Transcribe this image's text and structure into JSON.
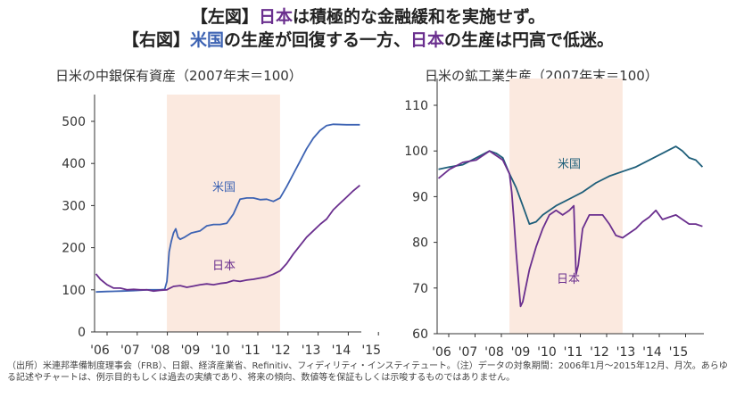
{
  "headline": {
    "l1_a": "【左図】",
    "l1_b": "日本",
    "l1_c": "は積極的な金融緩和を実施せず。",
    "l2_a": "【右図】",
    "l2_b": "米国",
    "l2_c": "の生産が回復する一方、",
    "l2_d": "日本",
    "l2_e": "の生産は円高で低迷。"
  },
  "footnote": "（出所）米連邦準備制度理事会（FRB）、日銀、経済産業省、Refinitiv、フィディリティ・インスティテュート。（注）データの対象期間：2006年1月～2015年12月、月次。あらゆる記述やチャートは、例示目的もしくは過去の実績であり、将来の傾向、数値等を保証もしくは示唆するものではありません。",
  "colors": {
    "us": "#3d63b3",
    "jp": "#6a2f8e",
    "us_right": "#1f5f7a",
    "shade": "#fbe9df"
  },
  "chart_data": [
    {
      "type": "line",
      "title": "日米の中銀保有資産（2007年末＝100）",
      "xlabel": "",
      "ylabel": "",
      "x_ticks": [
        "'06",
        "'07",
        "'08",
        "'09",
        "'10",
        "'11",
        "'12",
        "'13",
        "'14",
        "'15"
      ],
      "ylim": [
        0,
        500
      ],
      "y_ticks": [
        "0",
        "100",
        "200",
        "300",
        "400",
        "500"
      ],
      "shade": [
        "2008-09",
        "2012-12"
      ],
      "series": [
        {
          "name": "米国",
          "points": [
            [
              "2006-01",
              95
            ],
            [
              "2006-06",
              96
            ],
            [
              "2007-01",
              97
            ],
            [
              "2007-06",
              98
            ],
            [
              "2007-12",
              100
            ],
            [
              "2008-06",
              100
            ],
            [
              "2008-08",
              101
            ],
            [
              "2008-09",
              120
            ],
            [
              "2008-10",
              190
            ],
            [
              "2008-11",
              215
            ],
            [
              "2008-12",
              235
            ],
            [
              "2009-01",
              245
            ],
            [
              "2009-02",
              225
            ],
            [
              "2009-03",
              220
            ],
            [
              "2009-05",
              225
            ],
            [
              "2009-08",
              235
            ],
            [
              "2009-12",
              240
            ],
            [
              "2010-03",
              252
            ],
            [
              "2010-06",
              255
            ],
            [
              "2010-09",
              255
            ],
            [
              "2010-12",
              258
            ],
            [
              "2011-03",
              280
            ],
            [
              "2011-06",
              315
            ],
            [
              "2011-09",
              318
            ],
            [
              "2011-12",
              318
            ],
            [
              "2012-03",
              314
            ],
            [
              "2012-06",
              315
            ],
            [
              "2012-09",
              310
            ],
            [
              "2012-12",
              318
            ],
            [
              "2013-03",
              345
            ],
            [
              "2013-06",
              375
            ],
            [
              "2013-09",
              405
            ],
            [
              "2013-12",
              435
            ],
            [
              "2014-03",
              460
            ],
            [
              "2014-06",
              478
            ],
            [
              "2014-09",
              490
            ],
            [
              "2014-12",
              493
            ],
            [
              "2015-06",
              492
            ],
            [
              "2015-12",
              492
            ]
          ]
        },
        {
          "name": "日本",
          "points": [
            [
              "2006-01",
              138
            ],
            [
              "2006-03",
              125
            ],
            [
              "2006-06",
              112
            ],
            [
              "2006-09",
              104
            ],
            [
              "2006-12",
              104
            ],
            [
              "2007-03",
              100
            ],
            [
              "2007-06",
              101
            ],
            [
              "2007-09",
              100
            ],
            [
              "2007-12",
              100
            ],
            [
              "2008-03",
              97
            ],
            [
              "2008-06",
              99
            ],
            [
              "2008-09",
              100
            ],
            [
              "2008-10",
              103
            ],
            [
              "2008-12",
              108
            ],
            [
              "2009-03",
              110
            ],
            [
              "2009-06",
              106
            ],
            [
              "2009-09",
              109
            ],
            [
              "2009-12",
              112
            ],
            [
              "2010-03",
              114
            ],
            [
              "2010-06",
              112
            ],
            [
              "2010-09",
              115
            ],
            [
              "2010-12",
              117
            ],
            [
              "2011-03",
              122
            ],
            [
              "2011-06",
              120
            ],
            [
              "2011-09",
              123
            ],
            [
              "2011-12",
              125
            ],
            [
              "2012-03",
              128
            ],
            [
              "2012-06",
              131
            ],
            [
              "2012-09",
              137
            ],
            [
              "2012-12",
              145
            ],
            [
              "2013-03",
              162
            ],
            [
              "2013-06",
              185
            ],
            [
              "2013-09",
              205
            ],
            [
              "2013-12",
              225
            ],
            [
              "2014-03",
              240
            ],
            [
              "2014-06",
              255
            ],
            [
              "2014-09",
              268
            ],
            [
              "2014-12",
              290
            ],
            [
              "2015-03",
              305
            ],
            [
              "2015-06",
              320
            ],
            [
              "2015-09",
              335
            ],
            [
              "2015-12",
              348
            ]
          ]
        }
      ]
    },
    {
      "type": "line",
      "title": "日米の鉱工業生産（2007年末＝100）",
      "xlabel": "",
      "ylabel": "",
      "x_ticks": [
        "'06",
        "'07",
        "'08",
        "'09",
        "'10",
        "'11",
        "'12",
        "'13",
        "'14",
        "'15"
      ],
      "ylim": [
        60,
        110
      ],
      "y_ticks": [
        "60",
        "70",
        "80",
        "90",
        "100",
        "110"
      ],
      "shade": [
        "2008-09",
        "2012-12"
      ],
      "series": [
        {
          "name": "米国",
          "points": [
            [
              "2006-01",
              96
            ],
            [
              "2006-06",
              96.5
            ],
            [
              "2006-12",
              97
            ],
            [
              "2007-06",
              98.5
            ],
            [
              "2007-12",
              100
            ],
            [
              "2008-03",
              99.5
            ],
            [
              "2008-06",
              98.5
            ],
            [
              "2008-09",
              95
            ],
            [
              "2008-12",
              92
            ],
            [
              "2009-03",
              88
            ],
            [
              "2009-06",
              84
            ],
            [
              "2009-09",
              84.5
            ],
            [
              "2009-12",
              86
            ],
            [
              "2010-06",
              88
            ],
            [
              "2010-12",
              89.5
            ],
            [
              "2011-06",
              91
            ],
            [
              "2011-12",
              93
            ],
            [
              "2012-06",
              94.5
            ],
            [
              "2012-12",
              95.5
            ],
            [
              "2013-06",
              96.5
            ],
            [
              "2013-12",
              98
            ],
            [
              "2014-06",
              99.5
            ],
            [
              "2014-12",
              101
            ],
            [
              "2015-03",
              100
            ],
            [
              "2015-06",
              98.5
            ],
            [
              "2015-09",
              98
            ],
            [
              "2015-12",
              96.5
            ]
          ]
        },
        {
          "name": "日本",
          "points": [
            [
              "2006-01",
              94
            ],
            [
              "2006-06",
              96
            ],
            [
              "2006-12",
              97.5
            ],
            [
              "2007-06",
              98
            ],
            [
              "2007-12",
              100
            ],
            [
              "2008-03",
              99
            ],
            [
              "2008-06",
              98
            ],
            [
              "2008-09",
              95
            ],
            [
              "2008-10",
              91
            ],
            [
              "2008-11",
              85
            ],
            [
              "2008-12",
              78
            ],
            [
              "2009-01",
              72
            ],
            [
              "2009-02",
              66
            ],
            [
              "2009-03",
              67
            ],
            [
              "2009-06",
              74
            ],
            [
              "2009-09",
              79
            ],
            [
              "2009-12",
              83
            ],
            [
              "2010-03",
              86
            ],
            [
              "2010-06",
              87
            ],
            [
              "2010-09",
              86
            ],
            [
              "2010-12",
              87
            ],
            [
              "2011-02",
              88
            ],
            [
              "2011-03",
              73
            ],
            [
              "2011-04",
              75
            ],
            [
              "2011-06",
              83
            ],
            [
              "2011-09",
              86
            ],
            [
              "2011-12",
              86
            ],
            [
              "2012-03",
              86
            ],
            [
              "2012-06",
              84
            ],
            [
              "2012-09",
              81.5
            ],
            [
              "2012-12",
              81
            ],
            [
              "2013-03",
              82
            ],
            [
              "2013-06",
              83
            ],
            [
              "2013-09",
              84.5
            ],
            [
              "2013-12",
              85.5
            ],
            [
              "2014-03",
              87
            ],
            [
              "2014-06",
              85
            ],
            [
              "2014-09",
              85.5
            ],
            [
              "2014-12",
              86
            ],
            [
              "2015-03",
              85
            ],
            [
              "2015-06",
              84
            ],
            [
              "2015-09",
              84
            ],
            [
              "2015-12",
              83.5
            ]
          ]
        }
      ]
    }
  ]
}
